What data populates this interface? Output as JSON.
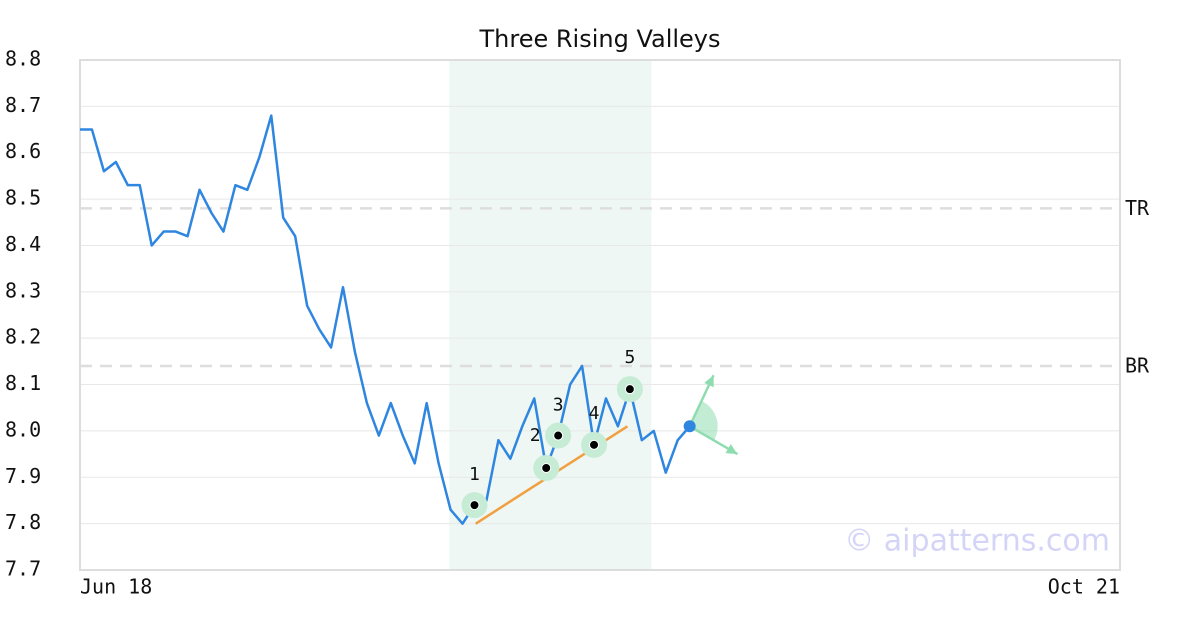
{
  "chart_data": {
    "type": "line",
    "title": "Three Rising Valleys",
    "x": [
      0,
      1,
      2,
      3,
      4,
      5,
      6,
      7,
      8,
      9,
      10,
      11,
      12,
      13,
      14,
      15,
      16,
      17,
      18,
      19,
      20,
      21,
      22,
      23,
      24,
      25,
      26,
      27,
      28,
      29,
      30,
      31,
      32,
      33,
      34,
      35,
      36,
      37,
      38,
      39,
      40,
      41,
      42,
      43,
      44,
      45,
      46,
      47,
      48,
      49,
      50,
      51
    ],
    "values": [
      8.65,
      8.65,
      8.56,
      8.58,
      8.53,
      8.53,
      8.4,
      8.43,
      8.43,
      8.42,
      8.52,
      8.47,
      8.43,
      8.53,
      8.52,
      8.59,
      8.68,
      8.46,
      8.42,
      8.27,
      8.22,
      8.18,
      8.31,
      8.17,
      8.06,
      7.99,
      8.06,
      7.99,
      7.93,
      8.06,
      7.93,
      7.83,
      7.8,
      7.84,
      7.85,
      7.98,
      7.94,
      8.01,
      8.07,
      7.92,
      7.99,
      8.1,
      8.14,
      7.97,
      8.07,
      8.01,
      8.09,
      7.98,
      8.0,
      7.91,
      7.98,
      8.01
    ],
    "color": "#2f86e0",
    "xlim": [
      0,
      87
    ],
    "xticks": [
      {
        "value": 0,
        "label": "Jun 18"
      },
      {
        "value": 87,
        "label": "Oct 21"
      }
    ],
    "ylim": [
      7.7,
      8.8
    ],
    "yticks": [
      7.7,
      7.8,
      7.9,
      {
        "value": 8,
        "label": "8.0"
      },
      8.1,
      8.2,
      8.3,
      8.4,
      8.5,
      8.6,
      8.7,
      8.8
    ],
    "grid": true,
    "levels": [
      {
        "label": "TR",
        "value": 8.48
      },
      {
        "label": "BR",
        "value": 8.14
      }
    ],
    "highlight": [
      30.9,
      47.8
    ],
    "points": {
      "labels": [
        "1",
        "2",
        "3",
        "4",
        "5"
      ],
      "x": [
        33,
        39,
        40,
        43,
        46
      ],
      "values": [
        7.84,
        7.92,
        7.99,
        7.97,
        8.09
      ]
    },
    "trendline": {
      "x": [
        33.1,
        45.8
      ],
      "values": [
        7.8,
        8.01
      ],
      "color": "#f0a040"
    },
    "projection": {
      "x": [
        53,
        55
      ],
      "values": [
        8.12,
        7.95
      ],
      "color": "#8fdcb0"
    },
    "watermark": "© aipatterns.com"
  }
}
